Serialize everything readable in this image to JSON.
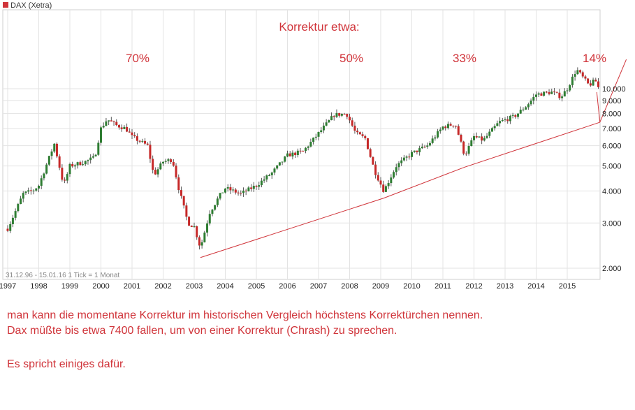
{
  "legend": {
    "label": "DAX (Xetra)",
    "swatch_color": "#d0343a"
  },
  "range_label": "31.12.96 - 15.01.16   1 Tick = 1 Monat",
  "annotations": {
    "header": "Korrektur etwa:",
    "p70": "70%",
    "p50": "50%",
    "p33": "33%",
    "p14": "14%"
  },
  "comments": [
    "man kann die momentane Korrektur im historischen Vergleich höchstens Korrektürchen nennen.",
    "Dax müßte bis etwa 7400 fallen, um von einer Korrektur (Chrash) zu sprechen.",
    "Es spricht einiges dafür."
  ],
  "colors": {
    "up": "#2e7d32",
    "down": "#c62828",
    "trendline": "#d0343a",
    "grid": "#e3e3e3",
    "annotation": "#d0343a"
  },
  "chart_data": {
    "type": "candlestick",
    "scale": "log",
    "ylim": [
      1900,
      12500
    ],
    "xlim": [
      1997.0,
      2016.1
    ],
    "ytick_labels": [
      "2.000",
      "3.000",
      "4.000",
      "5.000",
      "6.000",
      "7.000",
      "8.000",
      "9.000",
      "10.000"
    ],
    "ytick_values": [
      2000,
      3000,
      4000,
      5000,
      6000,
      7000,
      8000,
      9000,
      10000
    ],
    "xtick_labels": [
      "1997",
      "1998",
      "1999",
      "2000",
      "2001",
      "2002",
      "2003",
      "2004",
      "2005",
      "2006",
      "2007",
      "2008",
      "2009",
      "2010",
      "2011",
      "2012",
      "2013",
      "2014",
      "2015"
    ],
    "series": [
      {
        "name": "DAX (Xetra)",
        "points": [
          [
            1997.0,
            2850
          ],
          [
            1997.5,
            3900
          ],
          [
            1997.8,
            4000
          ],
          [
            1998.0,
            4200
          ],
          [
            1998.5,
            6100
          ],
          [
            1998.8,
            4200
          ],
          [
            1999.0,
            5000
          ],
          [
            1999.5,
            5200
          ],
          [
            1999.8,
            5400
          ],
          [
            2000.0,
            7000
          ],
          [
            2000.2,
            7600
          ],
          [
            2000.5,
            7200
          ],
          [
            2000.8,
            7000
          ],
          [
            2001.0,
            6500
          ],
          [
            2001.5,
            6000
          ],
          [
            2001.7,
            4600
          ],
          [
            2002.0,
            5200
          ],
          [
            2002.3,
            5300
          ],
          [
            2002.5,
            4100
          ],
          [
            2002.8,
            3000
          ],
          [
            2003.0,
            2900
          ],
          [
            2003.2,
            2400
          ],
          [
            2003.5,
            3300
          ],
          [
            2003.8,
            3800
          ],
          [
            2004.0,
            4100
          ],
          [
            2004.5,
            3900
          ],
          [
            2005.0,
            4200
          ],
          [
            2005.5,
            4700
          ],
          [
            2006.0,
            5500
          ],
          [
            2006.5,
            5700
          ],
          [
            2007.0,
            6700
          ],
          [
            2007.5,
            7900
          ],
          [
            2007.9,
            8000
          ],
          [
            2008.2,
            6700
          ],
          [
            2008.5,
            6400
          ],
          [
            2008.8,
            4800
          ],
          [
            2009.1,
            4000
          ],
          [
            2009.5,
            5000
          ],
          [
            2010.0,
            5600
          ],
          [
            2010.5,
            6000
          ],
          [
            2011.0,
            7100
          ],
          [
            2011.4,
            7300
          ],
          [
            2011.7,
            5500
          ],
          [
            2012.0,
            6500
          ],
          [
            2012.3,
            6300
          ],
          [
            2012.8,
            7400
          ],
          [
            2013.3,
            7800
          ],
          [
            2013.7,
            8600
          ],
          [
            2014.0,
            9500
          ],
          [
            2014.5,
            9700
          ],
          [
            2014.8,
            9300
          ],
          [
            2015.0,
            10000
          ],
          [
            2015.3,
            11900
          ],
          [
            2015.7,
            10300
          ],
          [
            2015.9,
            10800
          ],
          [
            2016.05,
            9800
          ]
        ]
      }
    ],
    "trendline": [
      [
        2003.2,
        2200
      ],
      [
        2009.1,
        3750
      ],
      [
        2011.7,
        4950
      ],
      [
        2016.05,
        7400
      ]
    ],
    "projection": [
      [
        2015.95,
        9700
      ],
      [
        2016.05,
        7400
      ],
      [
        2016.9,
        13000
      ]
    ]
  }
}
